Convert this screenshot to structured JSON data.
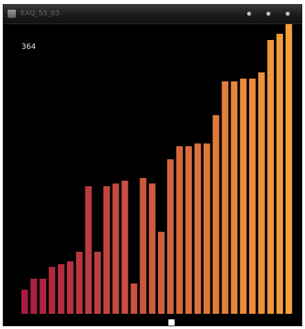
{
  "window": {
    "title": "EXQ_55_03",
    "icons": [
      "app-icon",
      "minimize-icon",
      "maximize-icon",
      "close-icon"
    ]
  },
  "counter": {
    "value": "364"
  },
  "colors": {
    "background": "#000000",
    "bar_start": "#a71c40",
    "bar_end": "#f5a03a"
  },
  "chart_data": {
    "type": "bar",
    "title": "",
    "xlabel": "",
    "ylabel": "",
    "grid": false,
    "ylim": [
      0,
      400
    ],
    "values": [
      35,
      51,
      51,
      68,
      72,
      76,
      90,
      185,
      90,
      185,
      189,
      193,
      44,
      197,
      189,
      119,
      224,
      243,
      243,
      247,
      247,
      288,
      337,
      337,
      341,
      341,
      350,
      397,
      406,
      420
    ]
  }
}
